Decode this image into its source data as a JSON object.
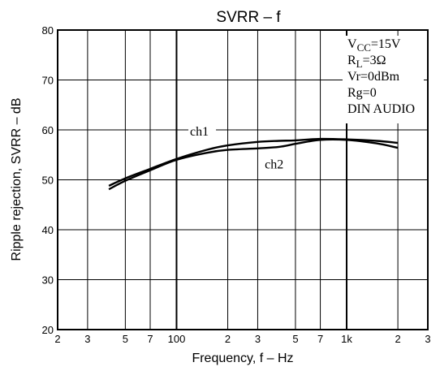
{
  "chart_data": {
    "type": "line",
    "title": "SVRR – f",
    "xlabel": "Frequency,  f – Hz",
    "ylabel": "Ripple rejection,  SVRR – dB",
    "x_scale": "log",
    "xlim": [
      20,
      3000
    ],
    "ylim": [
      20,
      80
    ],
    "x_ticks": [
      {
        "value": 20,
        "label": "2"
      },
      {
        "value": 30,
        "label": "3"
      },
      {
        "value": 50,
        "label": "5"
      },
      {
        "value": 70,
        "label": "7"
      },
      {
        "value": 100,
        "label": "100"
      },
      {
        "value": 200,
        "label": "2"
      },
      {
        "value": 300,
        "label": "3"
      },
      {
        "value": 500,
        "label": "5"
      },
      {
        "value": 700,
        "label": "7"
      },
      {
        "value": 1000,
        "label": "1k"
      },
      {
        "value": 2000,
        "label": "2"
      },
      {
        "value": 3000,
        "label": "3"
      }
    ],
    "x_grid": [
      20,
      30,
      50,
      70,
      100,
      200,
      300,
      500,
      700,
      1000,
      2000,
      3000
    ],
    "y_ticks": [
      {
        "value": 20,
        "label": "20"
      },
      {
        "value": 30,
        "label": "30"
      },
      {
        "value": 40,
        "label": "40"
      },
      {
        "value": 50,
        "label": "50"
      },
      {
        "value": 60,
        "label": "60"
      },
      {
        "value": 70,
        "label": "70"
      },
      {
        "value": 80,
        "label": "80"
      }
    ],
    "grid": true,
    "series": [
      {
        "name": "ch1",
        "x": [
          40,
          50,
          70,
          100,
          150,
          200,
          300,
          400,
          500,
          700,
          1000,
          1500,
          2000
        ],
        "y": [
          48.8,
          50.3,
          52.2,
          54.2,
          56.0,
          56.9,
          57.6,
          57.8,
          57.9,
          58.2,
          58.1,
          57.8,
          57.4
        ]
      },
      {
        "name": "ch2",
        "x": [
          40,
          50,
          70,
          100,
          150,
          200,
          300,
          400,
          500,
          700,
          1000,
          1500,
          2000
        ],
        "y": [
          48.1,
          49.8,
          51.9,
          54.0,
          55.4,
          56.0,
          56.3,
          56.6,
          57.2,
          58.0,
          58.0,
          57.3,
          56.4
        ]
      }
    ],
    "conditions": [
      {
        "main": "V",
        "sub": "CC",
        "rest": "=15V"
      },
      {
        "main": "R",
        "sub": "L",
        "rest": "=3Ω"
      },
      {
        "main": "Vr=0dBm",
        "sub": "",
        "rest": ""
      },
      {
        "main": "Rg=0",
        "sub": "",
        "rest": ""
      },
      {
        "main": "DIN AUDIO",
        "sub": "",
        "rest": ""
      }
    ]
  }
}
